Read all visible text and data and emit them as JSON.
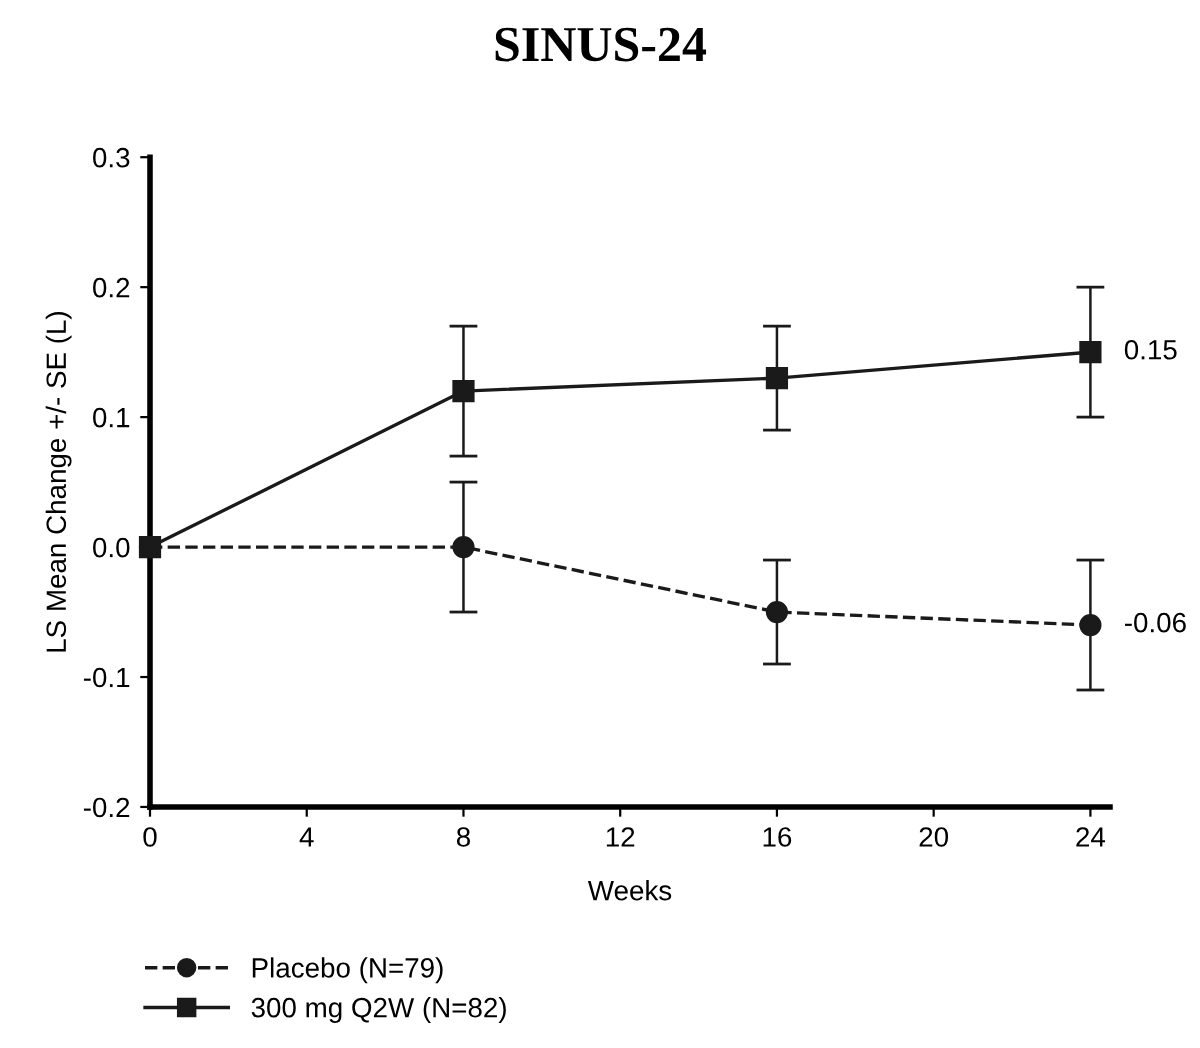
{
  "chart_data": {
    "type": "line",
    "title": "SINUS-24",
    "xlabel": "Weeks",
    "ylabel": "LS Mean Change +/- SE (L)",
    "x": [
      0,
      8,
      16,
      24
    ],
    "series": [
      {
        "name": "Placebo (N=79)",
        "color": "#1a1a1a",
        "values": [
          0,
          0,
          -0.05,
          -0.06
        ],
        "errors": [
          null,
          0.05,
          0.04,
          0.05
        ],
        "value_labels": [
          null,
          null,
          null,
          "-0.06"
        ],
        "marker": "circle",
        "line_style": "dashed"
      },
      {
        "name": "300 mg Q2W (N=82)",
        "color": "#1a1a1a",
        "values": [
          0,
          0.12,
          0.13,
          0.15
        ],
        "errors": [
          null,
          0.05,
          0.04,
          0.05
        ],
        "value_labels": [
          null,
          null,
          null,
          "0.15"
        ],
        "marker": "square",
        "line_style": "solid"
      }
    ],
    "xlim": [
      0,
      24.5
    ],
    "xticks": [
      0,
      4,
      8,
      12,
      16,
      20,
      24
    ],
    "ylim": [
      -0.2,
      0.3
    ],
    "yticks": [
      {
        "value": -0.2,
        "label": "-0.2"
      },
      {
        "value": -0.1,
        "label": "-0.1"
      },
      {
        "value": 0,
        "label": "0.0"
      },
      {
        "value": 0.1,
        "label": "0.1"
      },
      {
        "value": 0.2,
        "label": "0.2"
      },
      {
        "value": 0.3,
        "label": "0.3"
      }
    ],
    "grid": false,
    "legend": "bottom"
  }
}
